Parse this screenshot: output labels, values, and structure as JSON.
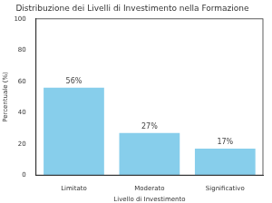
{
  "chart_data": {
    "type": "bar",
    "title": "Distribuzione dei Livelli di Investimento nella Formazione",
    "x_label": "Livello di Investimento",
    "y_label": "Percentuale (%)",
    "categories": [
      "Limitato",
      "Moderato",
      "Significativo"
    ],
    "values": [
      56,
      27,
      17
    ],
    "value_labels": [
      "56%",
      "27%",
      "17%"
    ],
    "data_labels": true,
    "color": "#87ceeb",
    "ylim": [
      0,
      100
    ],
    "yticks": [
      0,
      20,
      40,
      60,
      80,
      100
    ],
    "grid": false
  }
}
